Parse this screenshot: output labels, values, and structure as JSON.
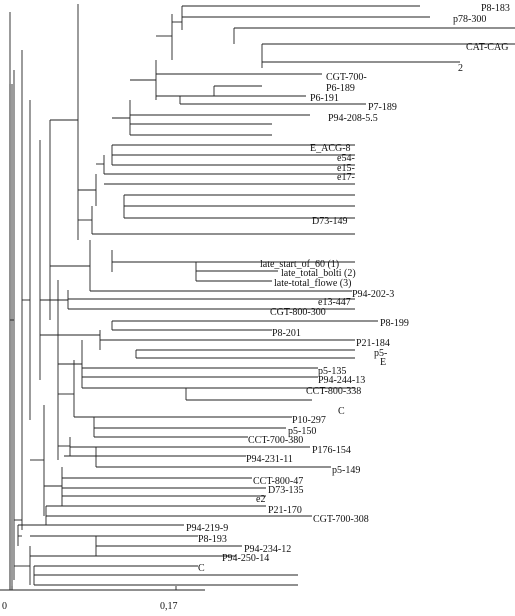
{
  "scale_labels": [
    "0",
    "0,17"
  ],
  "leaves": [
    {
      "label": "P8-183"
    },
    {
      "label": "p78-300"
    },
    {
      "label": ""
    },
    {
      "label": "CAT-CAG"
    },
    {
      "label": "2"
    },
    {
      "label": "CGT-700-"
    },
    {
      "label": "P6-189"
    },
    {
      "label": "P6-191"
    },
    {
      "label": "P7-189"
    },
    {
      "label": "P94-208-5.5"
    },
    {
      "label": ""
    },
    {
      "label": ""
    },
    {
      "label": "E_ACG-8"
    },
    {
      "label": "e54-"
    },
    {
      "label": "e15-"
    },
    {
      "label": "e17-"
    },
    {
      "label": ""
    },
    {
      "label": ""
    },
    {
      "label": ""
    },
    {
      "label": "D73-149"
    },
    {
      "label": ""
    },
    {
      "label": "late_start_of_60 (1)"
    },
    {
      "label": "late_total_bolti (2)"
    },
    {
      "label": "late-total_flowe (3)"
    },
    {
      "label": "P94-202-3"
    },
    {
      "label": "e13-447"
    },
    {
      "label": "CGT-800-300"
    },
    {
      "label": "P8-199"
    },
    {
      "label": "P8-201"
    },
    {
      "label": "P21-184"
    },
    {
      "label": "p5-"
    },
    {
      "label": "E"
    },
    {
      "label": "p5-135"
    },
    {
      "label": "P94-244-13"
    },
    {
      "label": "CCT-800-338"
    },
    {
      "label": "C"
    },
    {
      "label": "P10-297"
    },
    {
      "label": "p5-150"
    },
    {
      "label": "CCT-700-380"
    },
    {
      "label": "P176-154"
    },
    {
      "label": "P94-231-11"
    },
    {
      "label": "p5-149"
    },
    {
      "label": "CCT-800-47"
    },
    {
      "label": "D73-135"
    },
    {
      "label": "e2"
    },
    {
      "label": "P21-170"
    },
    {
      "label": "CGT-700-308"
    },
    {
      "label": "P94-219-9"
    },
    {
      "label": "P8-193"
    },
    {
      "label": "P94-234-12"
    },
    {
      "label": "P94-250-14"
    },
    {
      "label": "C"
    },
    {
      "label": ""
    },
    {
      "label": ""
    }
  ]
}
